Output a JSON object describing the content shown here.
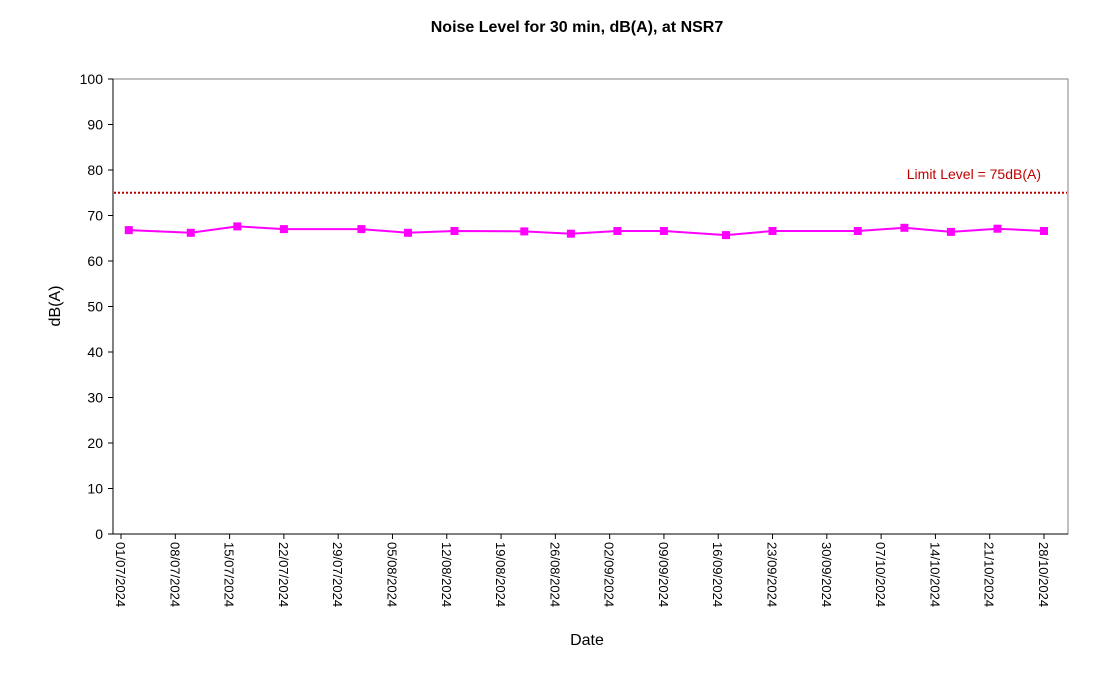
{
  "chart_data": {
    "type": "line",
    "title": "Noise Level for 30 min, dB(A), at NSR7",
    "xlabel": "Date",
    "ylabel": "dB(A)",
    "ylim": [
      0,
      100
    ],
    "yticks": [
      "0",
      "10",
      "20",
      "30",
      "40",
      "50",
      "60",
      "70",
      "80",
      "90",
      "100"
    ],
    "xlim": [
      "2024-07-01",
      "2024-10-28"
    ],
    "xticks": [
      "01/07/2024",
      "08/07/2024",
      "15/07/2024",
      "22/07/2024",
      "29/07/2024",
      "05/08/2024",
      "12/08/2024",
      "19/08/2024",
      "26/08/2024",
      "02/09/2024",
      "09/09/2024",
      "16/09/2024",
      "23/09/2024",
      "30/09/2024",
      "07/10/2024",
      "14/10/2024",
      "21/10/2024",
      "28/10/2024"
    ],
    "grid": false,
    "series": [
      {
        "color": "#ff00ff",
        "marker": "square",
        "points": [
          {
            "x": "2024-07-02",
            "y": 66.8
          },
          {
            "x": "2024-07-10",
            "y": 66.2
          },
          {
            "x": "2024-07-16",
            "y": 67.6
          },
          {
            "x": "2024-07-22",
            "y": 67.0
          },
          {
            "x": "2024-08-01",
            "y": 67.0
          },
          {
            "x": "2024-08-07",
            "y": 66.2
          },
          {
            "x": "2024-08-13",
            "y": 66.6
          },
          {
            "x": "2024-08-22",
            "y": 66.5
          },
          {
            "x": "2024-08-28",
            "y": 66.0
          },
          {
            "x": "2024-09-03",
            "y": 66.6
          },
          {
            "x": "2024-09-09",
            "y": 66.6
          },
          {
            "x": "2024-09-17",
            "y": 65.7
          },
          {
            "x": "2024-09-23",
            "y": 66.6
          },
          {
            "x": "2024-10-04",
            "y": 66.6
          },
          {
            "x": "2024-10-10",
            "y": 67.3
          },
          {
            "x": "2024-10-16",
            "y": 66.4
          },
          {
            "x": "2024-10-22",
            "y": 67.1
          },
          {
            "x": "2024-10-28",
            "y": 66.6
          }
        ]
      }
    ],
    "reference_lines": [
      {
        "y": 75,
        "label": "Limit Level  = 75dB(A)",
        "color": "#c00000",
        "style": "dotted"
      }
    ]
  }
}
